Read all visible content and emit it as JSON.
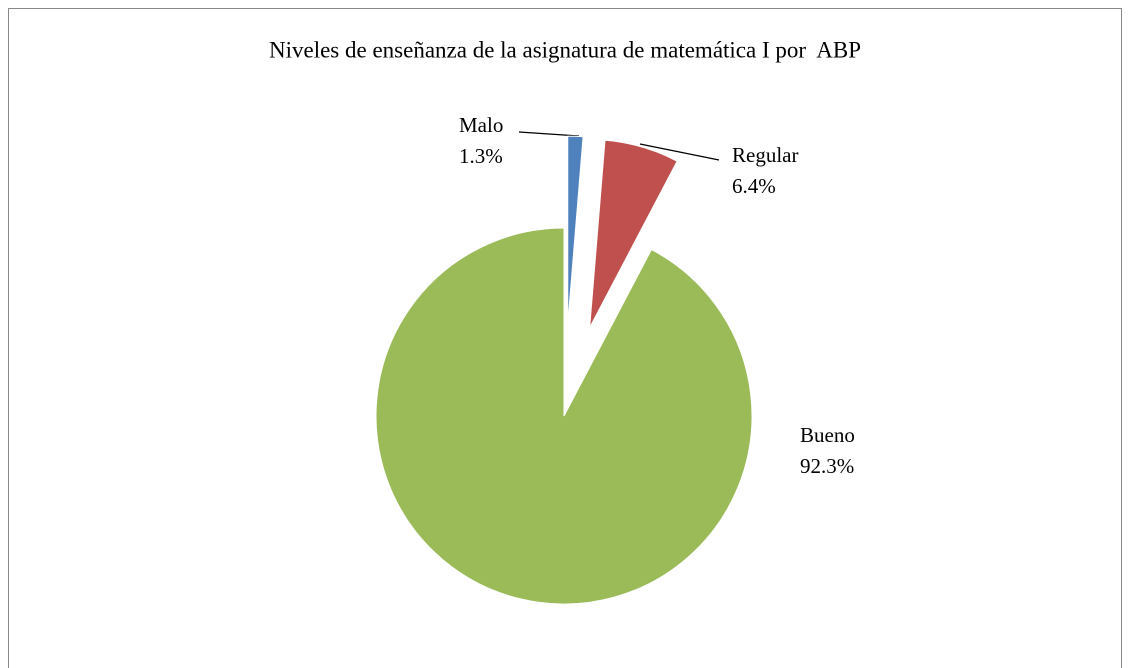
{
  "chart_data": {
    "type": "pie",
    "title": "Niveles de enseñanza de la asignatura de matemática I por  ABP",
    "categories": [
      "Malo",
      "Regular",
      "Bueno"
    ],
    "values": [
      1.3,
      6.4,
      92.3
    ],
    "value_labels": [
      "1.3%",
      "6.4%",
      "92.3%"
    ],
    "colors": [
      "#4f81bd",
      "#c0504d",
      "#9bbb59"
    ]
  }
}
